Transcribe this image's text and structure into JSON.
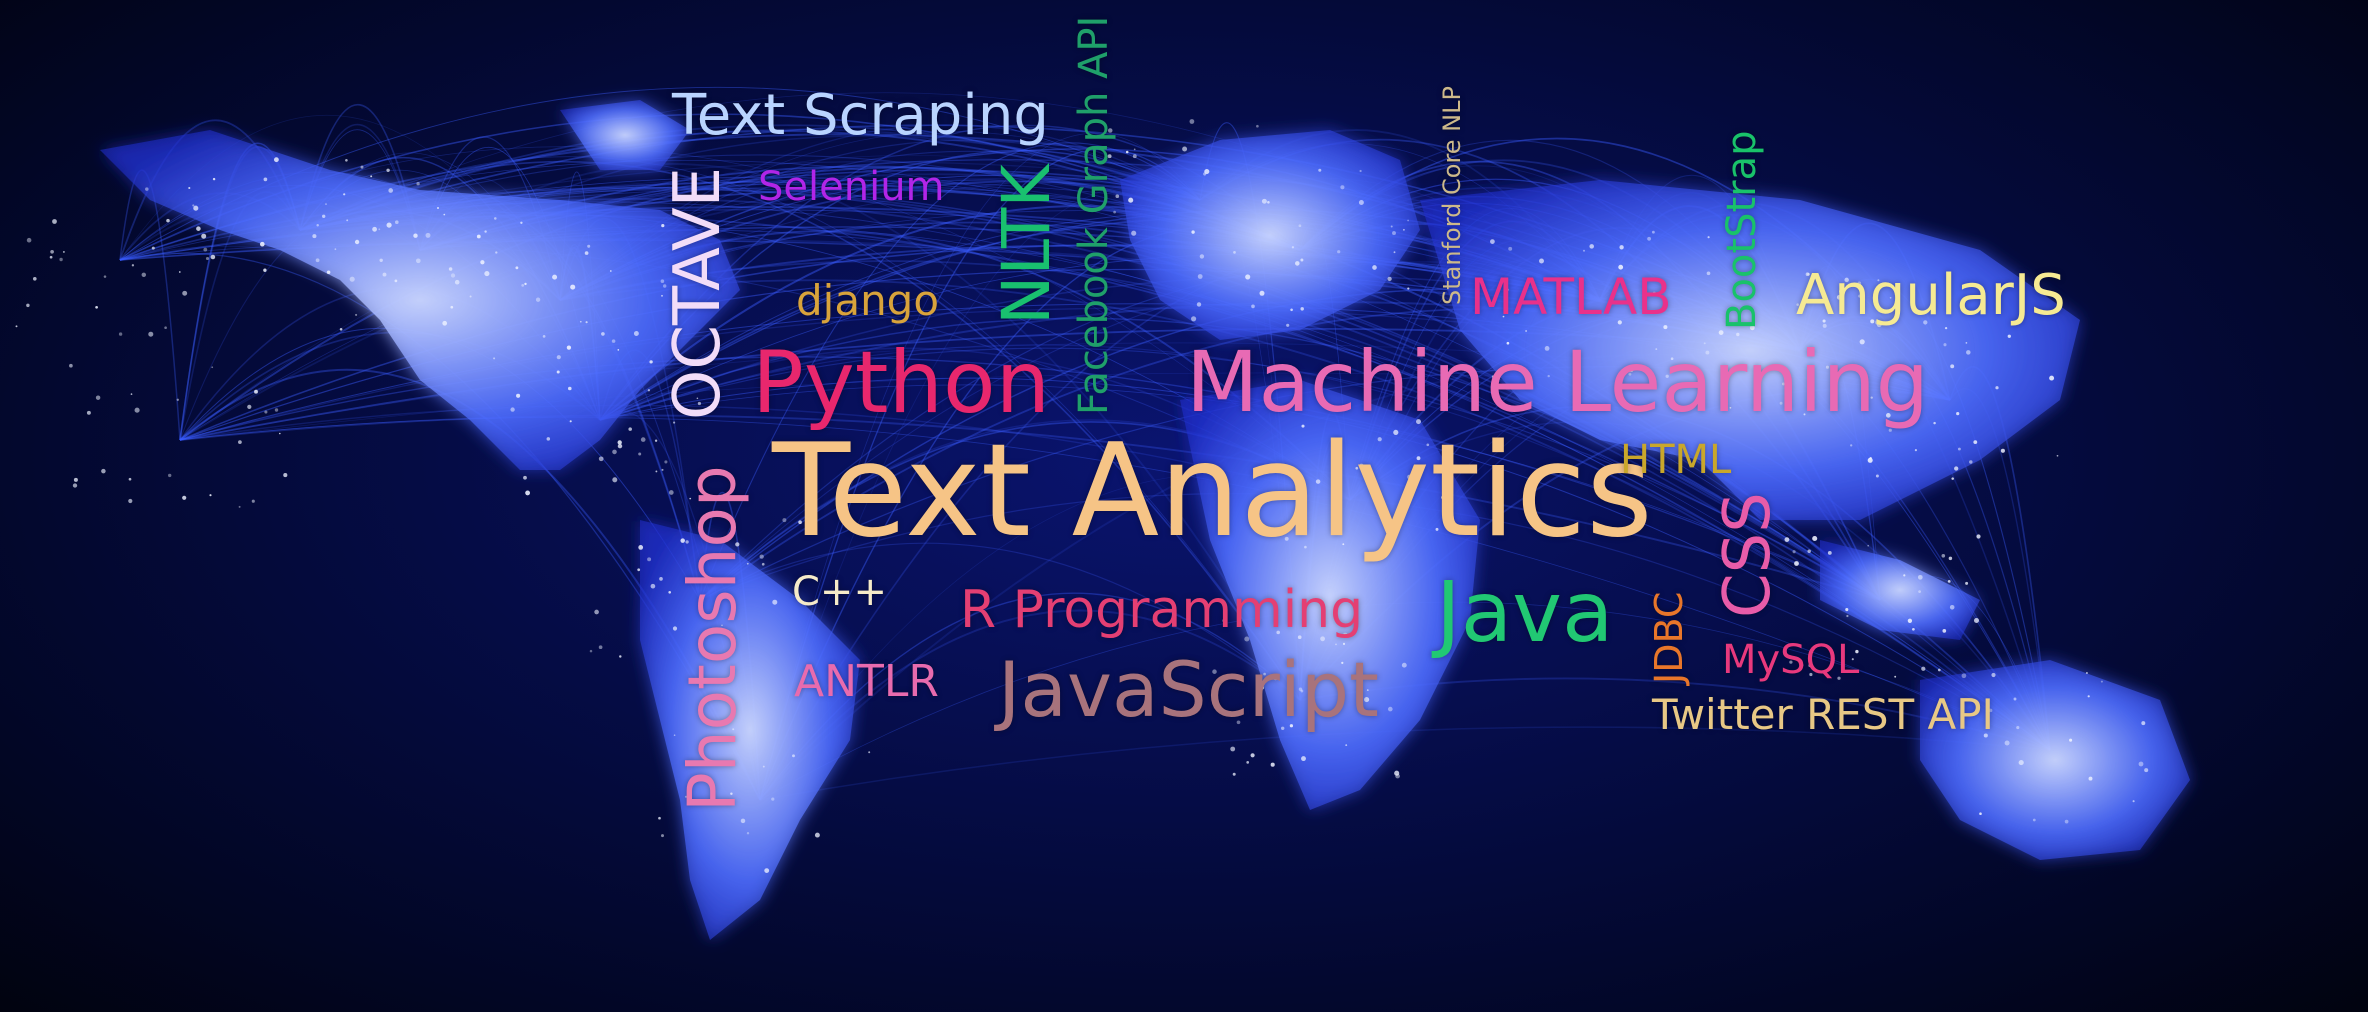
{
  "image": {
    "subject": "world-map-network",
    "colors": {
      "background": "#030a3a",
      "network": "#3a5cff",
      "land_glow": "#dfe6ff"
    }
  },
  "words": {
    "text_scraping": {
      "text": "Text Scraping",
      "color": "#b9d4ff"
    },
    "selenium": {
      "text": "Selenium",
      "color": "#b125e8"
    },
    "octave": {
      "text": "OCTAVE",
      "color": "#f2dcf8"
    },
    "django": {
      "text": "django",
      "color": "#d9a33b"
    },
    "nltk": {
      "text": "NLTK",
      "color": "#19c06f"
    },
    "facebook_graph_api": {
      "text": "Facebook Graph API",
      "color": "#1fa06a"
    },
    "stanford_core_nlp": {
      "text": "Stanford Core NLP",
      "color": "#cdb98a"
    },
    "bootstrap": {
      "text": "BootStrap",
      "color": "#19c26a"
    },
    "matlab": {
      "text": "MATLAB",
      "color": "#e9318a"
    },
    "angularjs": {
      "text": "AngularJS",
      "color": "#f6ea93"
    },
    "python": {
      "text": "Python",
      "color": "#e8276d"
    },
    "machine_learning": {
      "text": "Machine Learning",
      "color": "#e86ab4"
    },
    "text_analytics": {
      "text": "Text Analytics",
      "color": "#f6c486"
    },
    "html": {
      "text": "HTML",
      "color": "#c9a72b"
    },
    "photoshop": {
      "text": "Photoshop",
      "color": "#e879b0"
    },
    "cpp": {
      "text": "C++",
      "color": "#f6ebc9"
    },
    "r_programming": {
      "text": "R Programming",
      "color": "#e43f73"
    },
    "java": {
      "text": "Java",
      "color": "#21c873"
    },
    "jdbc": {
      "text": "JDBC",
      "color": "#e8762a"
    },
    "css": {
      "text": "CSS",
      "color": "#e85ca9"
    },
    "antlr": {
      "text": "ANTLR",
      "color": "#e86bae"
    },
    "javascript": {
      "text": "JavaScript",
      "color": "#a8737c"
    },
    "mysql": {
      "text": "MySQL",
      "color": "#e8397d"
    },
    "twitter_rest_api": {
      "text": "Twitter REST API",
      "color": "#e8c885"
    }
  }
}
